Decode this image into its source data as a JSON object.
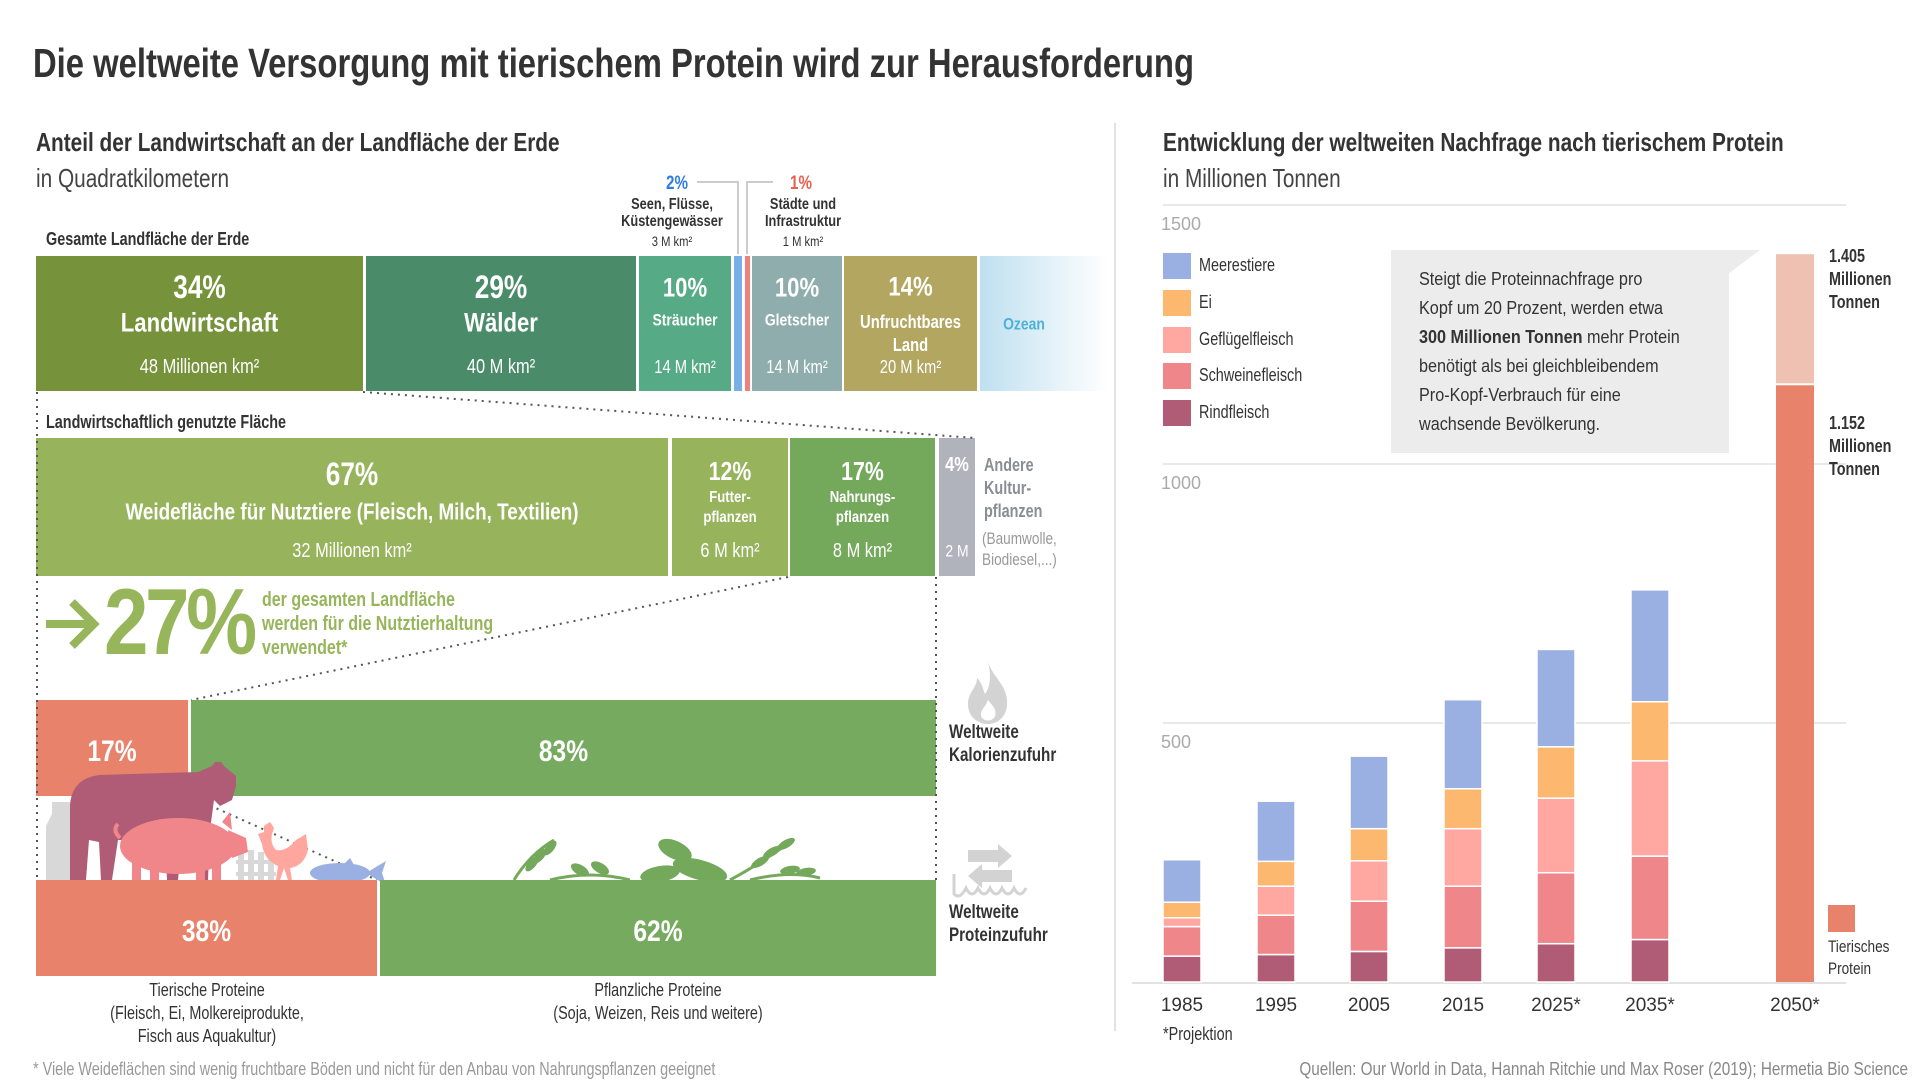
{
  "title": "Die weltweite Versorgung mit tierischem Protein wird zur Herausforderung",
  "left": {
    "title": "Anteil der Landwirtschaft an der Landfläche der Erde",
    "subtitle": "in Quadratkilometern",
    "total_label": "Gesamte Landfläche der Erde",
    "top_bar": [
      {
        "pct": "34%",
        "label": "Landwirtschaft",
        "value": "48 Millionen km²",
        "color": "#76923a"
      },
      {
        "pct": "29%",
        "label": "Wälder",
        "value": "40 M km²",
        "color": "#4a8b69"
      },
      {
        "pct": "10%",
        "label": "Sträucher",
        "value": "14 M km²",
        "color": "#56ab86"
      },
      {
        "pct": "2%",
        "color": "#78b0e6"
      },
      {
        "pct": "1%",
        "color": "#ee8080"
      },
      {
        "pct": "10%",
        "label": "Gletscher",
        "value": "14 M km²",
        "color": "#8fadad"
      },
      {
        "pct": "14%",
        "label_lines": [
          "Unfruchtbares",
          "Land"
        ],
        "value": "20 M km²",
        "color": "#b2a660"
      },
      {
        "label": "Ozean",
        "color": "#bfe0f0"
      }
    ],
    "lakes": {
      "pct": "2%",
      "lines": [
        "Seen, Flüsse,",
        "Küstengewässer"
      ],
      "value": "3 M km²",
      "color": "#2f7de0"
    },
    "cities": {
      "pct": "1%",
      "lines": [
        "Städte und",
        "Infrastruktur"
      ],
      "value": "1 M km²",
      "color": "#e8604f"
    },
    "ag_label": "Landwirtschaftlich genutzte Fläche",
    "ag_bar": [
      {
        "pct": "67%",
        "label": "Weidefläche für Nutztiere (Fleisch, Milch, Textilien)",
        "value": "32 Millionen km²",
        "color": "#97b35c"
      },
      {
        "pct": "12%",
        "lines": [
          "Futter-",
          "pflanzen"
        ],
        "value": "6 M km²",
        "color": "#97b35c"
      },
      {
        "pct": "17%",
        "lines": [
          "Nahrungs-",
          "pflanzen"
        ],
        "value": "8 M km²",
        "color": "#74a95c"
      },
      {
        "pct": "4%",
        "value": "2 M",
        "color": "#b0b3bc"
      }
    ],
    "other": {
      "lines": [
        "Andere",
        "Kultur-",
        "pflanzen"
      ],
      "note_lines": [
        "(Baumwolle,",
        "Biodiesel,...)"
      ]
    },
    "highlight": {
      "pct": "27%",
      "lines": [
        "der gesamten Landfläche",
        "werden für die Nutztierhaltung",
        "verwendet*"
      ],
      "color": "#97b55a"
    },
    "calories": {
      "animal_pct": "17%",
      "plant_pct": "83%",
      "lines": [
        "Weltweite",
        "Kalorienzufuhr"
      ]
    },
    "protein": {
      "animal_pct": "38%",
      "plant_pct": "62%",
      "lines": [
        "Weltweite",
        "Proteinzufuhr"
      ]
    },
    "animal_caption": [
      "Tierische Proteine",
      "(Fleisch, Ei, Molkereiprodukte,",
      "Fisch aus Aquakultur)"
    ],
    "plant_caption": [
      "Pflanzliche Proteine",
      "(Soja, Weizen, Reis und weitere)"
    ],
    "footnote": "* Viele Weideflächen sind wenig fruchtbare Böden und nicht für den Anbau von Nahrungspflanzen geeignet"
  },
  "right": {
    "title": "Entwicklung der weltweiten Nachfrage nach tierischem Protein",
    "subtitle": "in Millionen Tonnen",
    "note": {
      "lines": [
        "Steigt die Proteinnachfrage pro",
        "Kopf um 20 Prozent, werden etwa"
      ],
      "bold": "300 Millionen Tonnen",
      "after_bold": " mehr Protein",
      "lines2": [
        "benötigt als bei gleichbleibendem",
        "Pro-Kopf-Verbrauch für eine",
        "wachsende Bevölkerung."
      ]
    },
    "label_total": [
      "1.405",
      "Millionen",
      "Tonnen"
    ],
    "label_base": [
      "1.152",
      "Millionen",
      "Tonnen"
    ],
    "legend_2050": [
      "Tierisches",
      "Protein"
    ],
    "projection_note": "*Projektion",
    "sources": "Quellen: Our World in Data, Hannah Ritchie und Max Roser (2019); Hermetia Bio Science"
  },
  "chart_data": {
    "type": "bar",
    "stacked": true,
    "title": "Entwicklung der weltweiten Nachfrage nach tierischem Protein",
    "ylabel": "in Millionen Tonnen",
    "ylim": [
      0,
      1500
    ],
    "yticks": [
      "500",
      "1000",
      "1500"
    ],
    "grid": true,
    "legend": "top-left",
    "categories": [
      "1985",
      "1995",
      "2005",
      "2015",
      "2025*",
      "2035*"
    ],
    "series": [
      {
        "name": "Rindfleisch",
        "color": "#b05c76",
        "values": [
          50,
          53,
          59,
          66,
          74,
          82
        ]
      },
      {
        "name": "Schweinefleisch",
        "color": "#ef868a",
        "values": [
          57,
          76,
          97,
          119,
          137,
          161
        ]
      },
      {
        "name": "Geflügelfleisch",
        "color": "#ffa7a0",
        "values": [
          17,
          56,
          78,
          111,
          144,
          184
        ]
      },
      {
        "name": "Ei",
        "color": "#fdb86f",
        "values": [
          30,
          48,
          62,
          77,
          99,
          114
        ]
      },
      {
        "name": "Meerestiere",
        "color": "#9aafe2",
        "values": [
          82,
          116,
          140,
          172,
          188,
          216
        ]
      }
    ],
    "legend_order": [
      "Meerestiere",
      "Ei",
      "Geflügelfleisch",
      "Schweinefleisch",
      "Rindfleisch"
    ],
    "projection_2050": {
      "category": "2050*",
      "series_name": "Tierisches Protein",
      "base": 1152,
      "total": 1405,
      "base_color": "#e8826b",
      "increase_color": "#efc1b2"
    }
  }
}
